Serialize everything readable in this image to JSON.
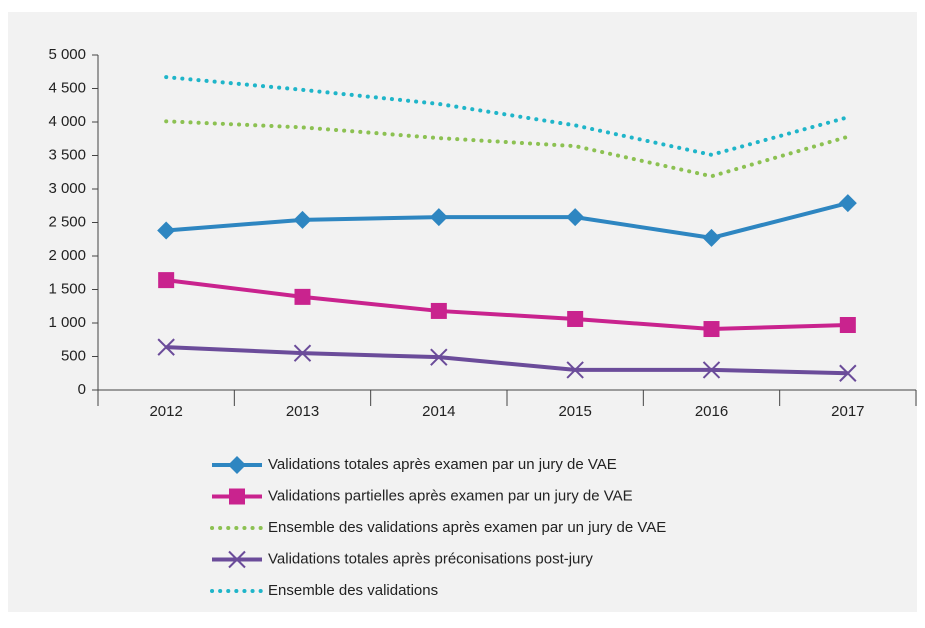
{
  "chart_data": {
    "type": "line",
    "categories": [
      "2012",
      "2013",
      "2014",
      "2015",
      "2016",
      "2017"
    ],
    "series": [
      {
        "name": "Validations totales après examen par un jury de VAE",
        "color": "#2e86c1",
        "marker": "diamond",
        "dash": "solid",
        "values": [
          2380,
          2540,
          2580,
          2580,
          2270,
          2790
        ]
      },
      {
        "name": "Validations partielles après examen par un jury de VAE",
        "color": "#c9238e",
        "marker": "square",
        "dash": "solid",
        "values": [
          1640,
          1390,
          1180,
          1060,
          910,
          970
        ]
      },
      {
        "name": "Ensemble des validations après examen par un jury de VAE",
        "color": "#8cc152",
        "marker": "none",
        "dash": "dotted",
        "values": [
          4010,
          3920,
          3760,
          3640,
          3190,
          3780
        ]
      },
      {
        "name": "Validations totales après préconisations post-jury",
        "color": "#6b4c9a",
        "marker": "x",
        "dash": "solid",
        "values": [
          640,
          550,
          490,
          300,
          300,
          250
        ]
      },
      {
        "name": "Ensemble des validations",
        "color": "#1fb5c9",
        "marker": "none",
        "dash": "dotted",
        "values": [
          4670,
          4480,
          4270,
          3950,
          3510,
          4070
        ]
      }
    ],
    "ylim": [
      0,
      5000
    ],
    "yticks": [
      0,
      500,
      {
        "value": 1000,
        "label": "1 000"
      },
      {
        "value": 1500,
        "label": "1 500"
      },
      {
        "value": 2000,
        "label": "2 000"
      },
      {
        "value": 2500,
        "label": "2 500"
      },
      {
        "value": 3000,
        "label": "3 000"
      },
      {
        "value": 3500,
        "label": "3 500"
      },
      {
        "value": 4000,
        "label": "4 000"
      },
      {
        "value": 4500,
        "label": "4 500"
      },
      {
        "value": 5000,
        "label": "5 000"
      }
    ],
    "grid": false,
    "legend": "bottom"
  }
}
